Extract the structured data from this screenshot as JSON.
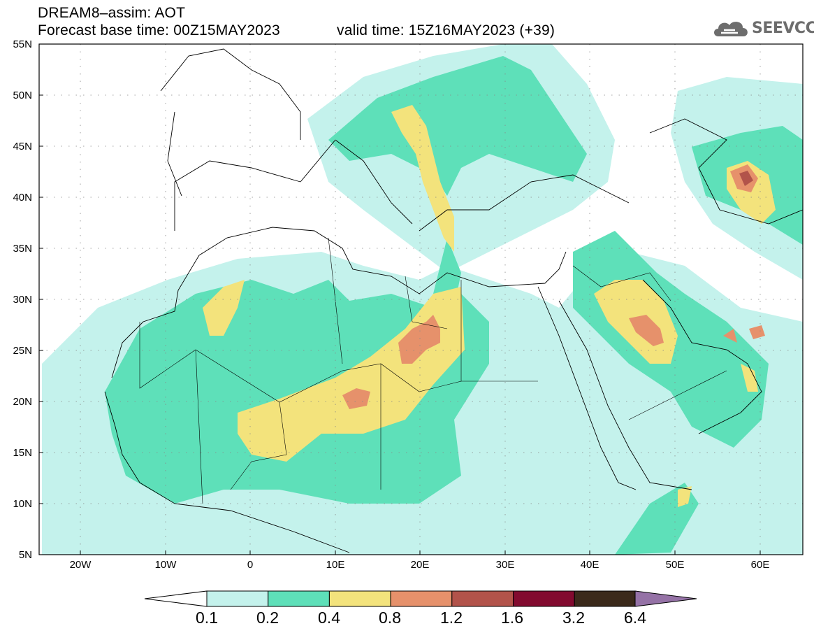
{
  "header": {
    "line1": "DREAM8–assim: AOT",
    "line2": "Forecast base time: 00Z15MAY2023",
    "line3": "valid time: 15Z16MAY2023 (+39)"
  },
  "logo": {
    "text": "SEEVCCC",
    "icon": "cloud-icon",
    "color": "#6d6d6d"
  },
  "map": {
    "variable": "AOT",
    "lon_range": [
      -25,
      65
    ],
    "lat_range": [
      5,
      55
    ],
    "lon_ticks": [
      "20W",
      "10W",
      "0",
      "10E",
      "20E",
      "30E",
      "40E",
      "50E",
      "60E"
    ],
    "lat_ticks": [
      "5N",
      "10N",
      "15N",
      "20N",
      "25N",
      "30N",
      "35N",
      "40N",
      "45N",
      "50N",
      "55N"
    ]
  },
  "colorbar": {
    "labels": [
      "0.1",
      "0.2",
      "0.4",
      "0.8",
      "1.2",
      "1.6",
      "3.2",
      "6.4"
    ],
    "colors": [
      "#c4f2ec",
      "#5ee0b9",
      "#f3e37c",
      "#e6916b",
      "#b2534a",
      "#820a2f",
      "#3b2a1b",
      "#9572a6"
    ]
  }
}
